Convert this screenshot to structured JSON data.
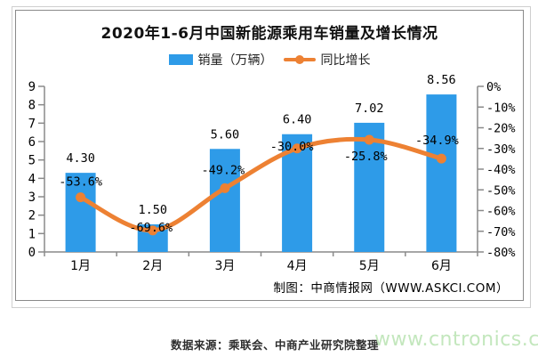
{
  "chart": {
    "title": "2020年1-6月中国新能源乘用车销量及增长情况",
    "legend": {
      "bars": "销量（万辆）",
      "line": "同比增长"
    },
    "credit": "制图：中商情报网（WWW.ASKCI.COM）"
  },
  "footer": {
    "source": "数据来源：乘联会、中商产业研究院整理",
    "watermark": "www.cntronics.com"
  },
  "colors": {
    "bar": "#2E9BE8",
    "line": "#ED8133",
    "axis": "#8a8a8a",
    "text": "#000000",
    "watermark": "#c3e7bd"
  },
  "chart_data": {
    "type": "bar",
    "subtype": "bar-and-line-combo",
    "title": "2020年1-6月中国新能源乘用车销量及增长情况",
    "categories": [
      "1月",
      "2月",
      "3月",
      "4月",
      "5月",
      "6月"
    ],
    "series": [
      {
        "name": "销量（万辆）",
        "type": "bar",
        "axis": "left",
        "values": [
          4.3,
          1.5,
          5.6,
          6.4,
          7.02,
          8.56
        ],
        "labels": [
          "4.30",
          "1.50",
          "5.60",
          "6.40",
          "7.02",
          "8.56"
        ],
        "color": "#2E9BE8"
      },
      {
        "name": "同比增长",
        "type": "line",
        "axis": "right",
        "values": [
          -53.6,
          -69.6,
          -49.2,
          -30.0,
          -25.8,
          -34.9
        ],
        "labels": [
          "-53.6%",
          "-69.6%",
          "-49.2%",
          "-30.0%",
          "-25.8%",
          "-34.9%"
        ],
        "color": "#ED8133"
      }
    ],
    "left_axis": {
      "min": 0,
      "max": 9,
      "ticks": [
        0,
        1,
        2,
        3,
        4,
        5,
        6,
        7,
        8,
        9
      ]
    },
    "right_axis": {
      "min": -80,
      "max": 0,
      "tick_labels": [
        "0%",
        "-10%",
        "-20%",
        "-30%",
        "-40%",
        "-50%",
        "-60%",
        "-70%",
        "-80%"
      ]
    },
    "grid": false,
    "legend_position": "top"
  }
}
